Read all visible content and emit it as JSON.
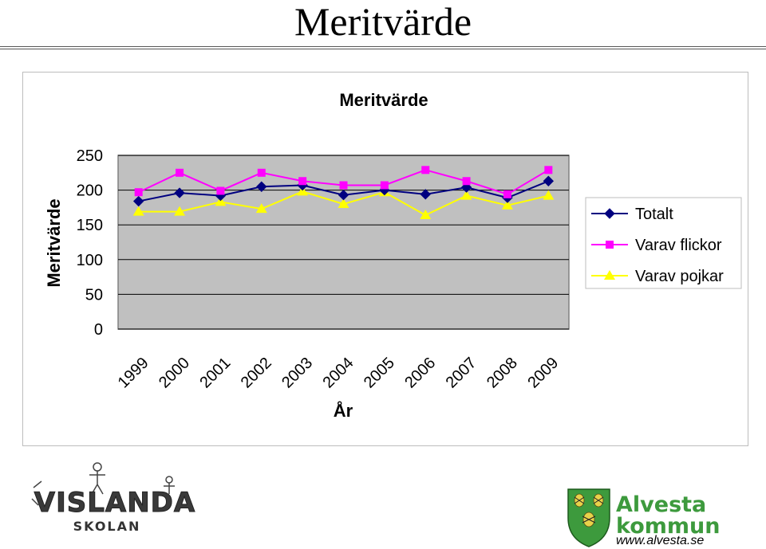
{
  "slide": {
    "title": "Meritvärde"
  },
  "chart_data": {
    "type": "line",
    "title": "Meritvärde",
    "xlabel": "År",
    "ylabel": "Meritvärde",
    "categories": [
      "1999",
      "2000",
      "2001",
      "2002",
      "2003",
      "2004",
      "2005",
      "2006",
      "2007",
      "2008",
      "2009"
    ],
    "ylim": [
      0,
      250
    ],
    "yticks": [
      "0",
      "50",
      "100",
      "150",
      "200",
      "250"
    ],
    "grid": true,
    "legend_position": "right",
    "series": [
      {
        "name": "Totalt",
        "color": "#000080",
        "marker": "diamond",
        "values": [
          184,
          196,
          192,
          205,
          207,
          193,
          200,
          194,
          204,
          189,
          213
        ]
      },
      {
        "name": "Varav flickor",
        "color": "#ff00ff",
        "marker": "square",
        "values": [
          197,
          225,
          199,
          225,
          213,
          207,
          207,
          229,
          213,
          194,
          229
        ]
      },
      {
        "name": "Varav pojkar",
        "color": "#ffff00",
        "marker": "triangle",
        "values": [
          169,
          169,
          183,
          173,
          198,
          180,
          197,
          164,
          192,
          178,
          192
        ]
      }
    ]
  },
  "logos": {
    "vislanda": {
      "line1": "VISLANDA",
      "line2": "SKOLAN"
    },
    "alvesta": {
      "line1": "Alvesta",
      "line2": "kommun",
      "url": "www.alvesta.se"
    }
  }
}
